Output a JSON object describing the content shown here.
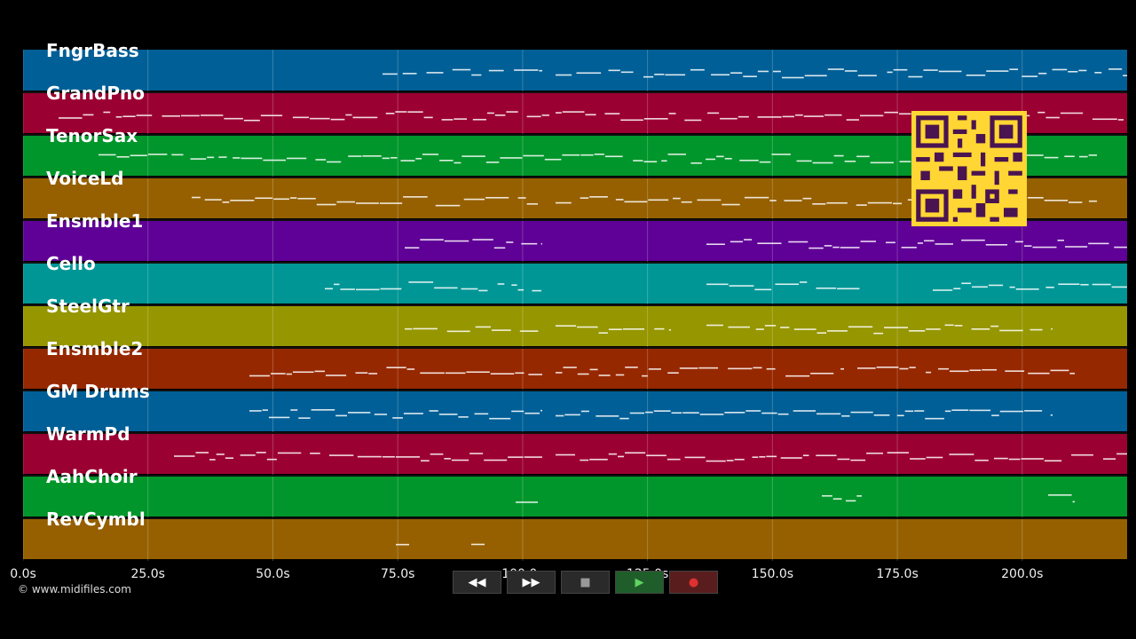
{
  "window": {
    "credit": "© www.midifiles.com"
  },
  "tracks": [
    {
      "name": "FngrBass",
      "color": "#005f96"
    },
    {
      "name": "GrandPno",
      "color": "#9b0032"
    },
    {
      "name": "TenorSax",
      "color": "#00962b"
    },
    {
      "name": "VoiceLd",
      "color": "#966000"
    },
    {
      "name": "Ensmble1",
      "color": "#5f0096"
    },
    {
      "name": "Cello",
      "color": "#009696"
    },
    {
      "name": "SteelGtr",
      "color": "#969600"
    },
    {
      "name": "Ensmble2",
      "color": "#962800"
    },
    {
      "name": "GM Drums",
      "color": "#005f96"
    },
    {
      "name": "WarmPd",
      "color": "#9b0032"
    },
    {
      "name": "AahChoir",
      "color": "#00962b"
    },
    {
      "name": "RevCymbl",
      "color": "#966000"
    }
  ],
  "timeline": {
    "ticks": [
      "0.0s",
      "25.0s",
      "50.0s",
      "75.0s",
      "100.0s",
      "125.0s",
      "150.0s",
      "175.0s",
      "200.0s"
    ],
    "tick_values": [
      0,
      25,
      50,
      75,
      100,
      125,
      150,
      175,
      200
    ],
    "max": 221
  },
  "transport": {
    "rewind_label": "◀◀",
    "forward_label": "▶▶",
    "stop_label": "■",
    "play_label": "▶",
    "record_label": "●"
  }
}
